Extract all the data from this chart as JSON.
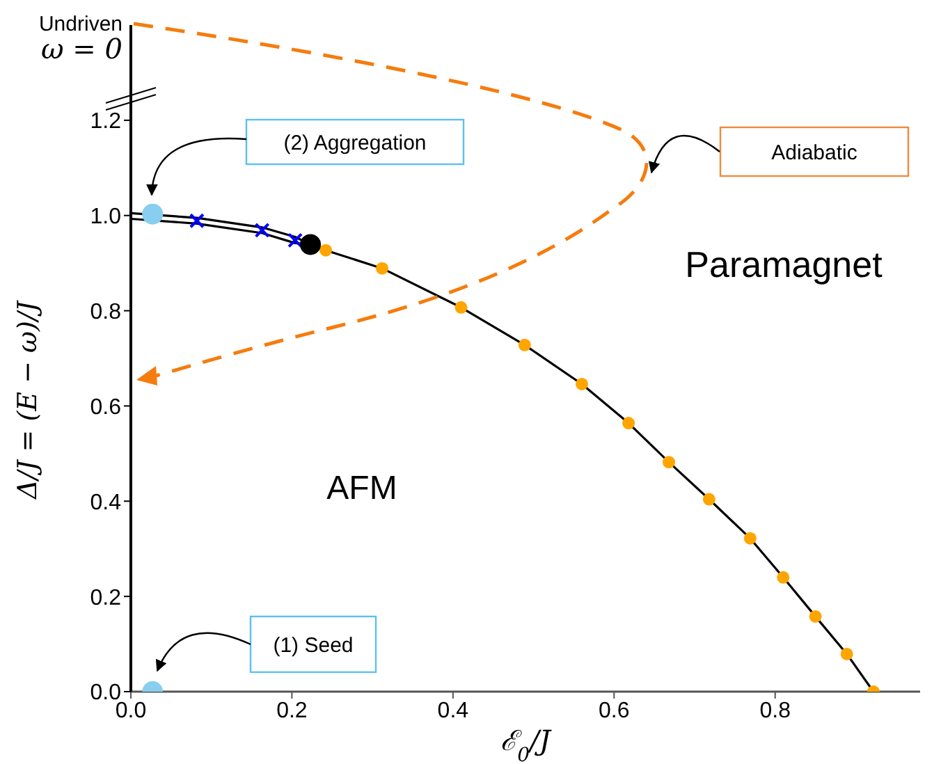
{
  "chart_data": {
    "type": "line",
    "xlabel": "ℰ$_{0}$/J",
    "ylabel": "Δ/J = (E − ω)/J",
    "xlim": [
      0,
      0.98
    ],
    "xticks": [
      {
        "value": 0,
        "label": "0.0"
      },
      0.2,
      0.4,
      0.6,
      0.8
    ],
    "ylim": [
      0,
      1.4
    ],
    "yticks": [
      {
        "value": 0,
        "label": "0.0"
      },
      0.2,
      0.4,
      0.6,
      0.8,
      {
        "value": 1,
        "label": "1.0"
      },
      1.2
    ],
    "grid": false,
    "series": [
      {
        "color": "#000000",
        "line_style": "solid",
        "x": [
          0,
          0.082,
          0.163,
          0.204,
          0.223
        ],
        "values": [
          1.005,
          0.995,
          0.975,
          0.955,
          0.939
        ]
      },
      {
        "color": "#000000",
        "line_style": "solid",
        "x": [
          0,
          0.082,
          0.163,
          0.204,
          0.223
        ],
        "values": [
          0.993,
          0.983,
          0.963,
          0.942,
          0.939
        ]
      },
      {
        "color": "#000000",
        "line_style": "solid",
        "x": [
          0.223,
          0.242,
          0.312,
          0.41,
          0.489,
          0.56,
          0.618,
          0.668,
          0.718,
          0.769,
          0.81,
          0.85,
          0.889,
          0.922
        ],
        "values": [
          0.939,
          0.927,
          0.889,
          0.807,
          0.728,
          0.646,
          0.564,
          0.482,
          0.404,
          0.322,
          0.24,
          0.158,
          0.079,
          0
        ]
      },
      {
        "type": "scatter",
        "color": "#ffa500",
        "marker": "circle",
        "x": [
          0.242,
          0.312,
          0.41,
          0.489,
          0.56,
          0.618,
          0.668,
          0.718,
          0.769,
          0.81,
          0.85,
          0.889,
          0.922
        ],
        "values": [
          0.927,
          0.889,
          0.807,
          0.728,
          0.646,
          0.564,
          0.482,
          0.404,
          0.322,
          0.24,
          0.158,
          0.079,
          0
        ]
      },
      {
        "type": "scatter",
        "color": "#0000ff",
        "marker": "cross",
        "x": [
          0.082,
          0.163,
          0.204
        ],
        "values": [
          0.989,
          0.969,
          0.948
        ]
      },
      {
        "type": "scatter",
        "color": "#000000",
        "marker": "circle",
        "x": [
          0.223
        ],
        "values": [
          0.939
        ]
      },
      {
        "type": "scatter",
        "color": "#87cef0",
        "marker": "circle",
        "x": [
          0.027,
          0.027
        ],
        "values": [
          1.003,
          0
        ]
      }
    ],
    "annotations": [
      "(2) Aggregation",
      "(1) Seed",
      "Adiabatic",
      "Paramagnet",
      "AFM",
      "Undriven\nω = 0"
    ]
  }
}
